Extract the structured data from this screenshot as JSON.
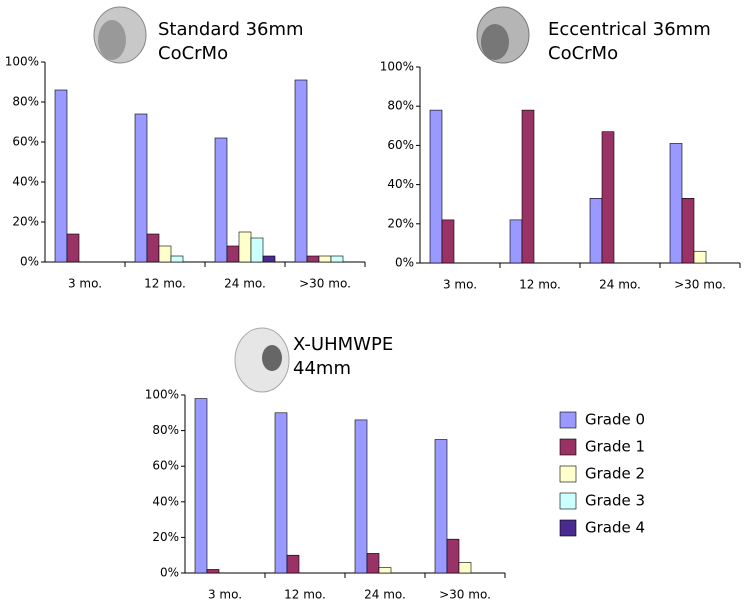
{
  "chart_data": [
    {
      "type": "bar",
      "title": [
        "Standard 36mm",
        "CoCrMo"
      ],
      "categories": [
        "3 mo.",
        "12 mo.",
        "24 mo.",
        ">30 mo."
      ],
      "series": [
        {
          "color": "#9999ff",
          "values": [
            86,
            74,
            62,
            91
          ]
        },
        {
          "color": "#993366",
          "values": [
            14,
            14,
            8,
            3
          ]
        },
        {
          "color": "#ffffcc",
          "values": [
            0,
            8,
            15,
            3
          ]
        },
        {
          "color": "#ccffff",
          "values": [
            0,
            3,
            12,
            3
          ]
        },
        {
          "color": "#4b2a8f",
          "values": [
            0,
            0,
            3,
            0
          ]
        }
      ],
      "ylim": [
        0,
        100
      ],
      "yticks": [
        {
          "value": 0,
          "label": "0%"
        },
        {
          "value": 20,
          "label": "20%"
        },
        {
          "value": 40,
          "label": "40%"
        },
        {
          "value": 60,
          "label": "60%"
        },
        {
          "value": 80,
          "label": "80%"
        },
        {
          "value": 100,
          "label": "100%"
        }
      ]
    },
    {
      "type": "bar",
      "title": [
        "Eccentrical 36mm",
        "CoCrMo"
      ],
      "categories": [
        "3 mo.",
        "12 mo.",
        "24 mo.",
        ">30 mo."
      ],
      "series": [
        {
          "color": "#9999ff",
          "values": [
            78,
            22,
            33,
            61
          ]
        },
        {
          "color": "#993366",
          "values": [
            22,
            78,
            67,
            33
          ]
        },
        {
          "color": "#ffffcc",
          "values": [
            0,
            0,
            0,
            6
          ]
        },
        {
          "color": "#ccffff",
          "values": [
            0,
            0,
            0,
            0
          ]
        },
        {
          "color": "#4b2a8f",
          "values": [
            0,
            0,
            0,
            0
          ]
        }
      ],
      "ylim": [
        0,
        100
      ],
      "yticks": [
        {
          "value": 0,
          "label": "0%"
        },
        {
          "value": 20,
          "label": "20%"
        },
        {
          "value": 40,
          "label": "40%"
        },
        {
          "value": 60,
          "label": "60%"
        },
        {
          "value": 80,
          "label": "80%"
        },
        {
          "value": 100,
          "label": "100%"
        }
      ]
    },
    {
      "type": "bar",
      "title": [
        "X-UHMWPE",
        "44mm"
      ],
      "categories": [
        "3 mo.",
        "12 mo.",
        "24 mo.",
        ">30 mo."
      ],
      "series": [
        {
          "name": "Grade 0",
          "color": "#9999ff",
          "values": [
            98,
            90,
            86,
            75
          ]
        },
        {
          "name": "Grade 1",
          "color": "#993366",
          "values": [
            2,
            10,
            11,
            19
          ]
        },
        {
          "name": "Grade 2",
          "color": "#ffffcc",
          "values": [
            0,
            0,
            3,
            6
          ]
        },
        {
          "name": "Grade 3",
          "color": "#ccffff",
          "values": [
            0,
            0,
            0,
            0
          ]
        },
        {
          "name": "Grade 4",
          "color": "#4b2a8f",
          "values": [
            0,
            0,
            0,
            0
          ]
        }
      ],
      "ylim": [
        0,
        100
      ],
      "yticks": [
        {
          "value": 0,
          "label": "0%"
        },
        {
          "value": 20,
          "label": "20%"
        },
        {
          "value": 40,
          "label": "40%"
        },
        {
          "value": 60,
          "label": "60%"
        },
        {
          "value": 80,
          "label": "80%"
        },
        {
          "value": 100,
          "label": "100%"
        }
      ]
    }
  ]
}
